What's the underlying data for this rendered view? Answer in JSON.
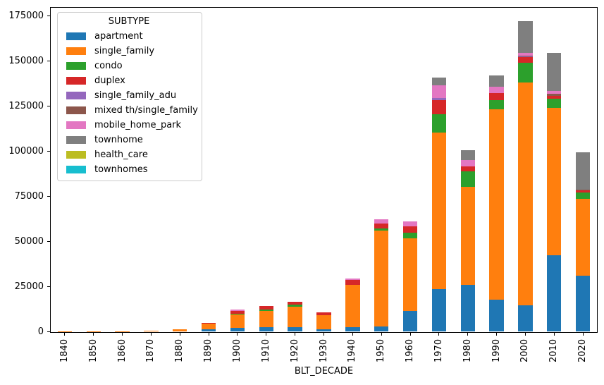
{
  "figure": {
    "xlabel": "BLT_DECADE",
    "legend_title": "SUBTYPE"
  },
  "chart_data": {
    "type": "bar",
    "subtype": "stacked",
    "title": "",
    "xlabel": "BLT_DECADE",
    "ylabel": "",
    "ylim": [
      0,
      180000
    ],
    "yticks": [
      0,
      25000,
      50000,
      75000,
      100000,
      125000,
      150000,
      175000
    ],
    "grid": false,
    "legend_title": "SUBTYPE",
    "legend_position": "upper-left",
    "categories": [
      "1840",
      "1850",
      "1860",
      "1870",
      "1880",
      "1890",
      "1900",
      "1910",
      "1920",
      "1930",
      "1940",
      "1950",
      "1960",
      "1970",
      "1980",
      "1990",
      "2000",
      "2010",
      "2020"
    ],
    "series": [
      {
        "name": "apartment",
        "color": "#1f77b4",
        "values": [
          0,
          0,
          0,
          0,
          0,
          1300,
          2200,
          2500,
          2700,
          1400,
          2700,
          3000,
          11500,
          23700,
          25900,
          17800,
          14800,
          42500,
          31000
        ]
      },
      {
        "name": "single_family",
        "color": "#ff7f0e",
        "values": [
          100,
          100,
          200,
          600,
          1300,
          3100,
          7500,
          9000,
          11300,
          7900,
          23200,
          53200,
          40200,
          86600,
          54500,
          105500,
          123300,
          81700,
          42500
        ]
      },
      {
        "name": "condo",
        "color": "#2ca02c",
        "values": [
          0,
          0,
          0,
          0,
          0,
          0,
          200,
          900,
          900,
          0,
          0,
          1000,
          3200,
          10400,
          8500,
          5200,
          11000,
          5000,
          3700
        ]
      },
      {
        "name": "duplex",
        "color": "#d62728",
        "values": [
          0,
          0,
          0,
          0,
          0,
          300,
          1600,
          1700,
          1800,
          1300,
          3000,
          2900,
          3600,
          7600,
          2600,
          3900,
          3000,
          1600,
          1000
        ]
      },
      {
        "name": "single_family_adu",
        "color": "#9467bd",
        "values": [
          0,
          0,
          0,
          0,
          0,
          0,
          0,
          0,
          0,
          0,
          0,
          0,
          0,
          1200,
          0,
          0,
          500,
          0,
          0
        ]
      },
      {
        "name": "mixed th/single_family",
        "color": "#8c564b",
        "values": [
          0,
          0,
          0,
          0,
          0,
          0,
          0,
          0,
          0,
          0,
          0,
          0,
          0,
          0,
          0,
          0,
          400,
          1300,
          600
        ]
      },
      {
        "name": "mobile_home_park",
        "color": "#e377c2",
        "values": [
          0,
          0,
          0,
          0,
          0,
          0,
          1000,
          0,
          0,
          0,
          600,
          2200,
          2600,
          7200,
          3700,
          3300,
          1700,
          1300,
          0
        ]
      },
      {
        "name": "townhome",
        "color": "#7f7f7f",
        "values": [
          0,
          0,
          0,
          0,
          0,
          0,
          0,
          0,
          0,
          0,
          0,
          0,
          0,
          4300,
          5500,
          6300,
          17300,
          21200,
          20500
        ]
      },
      {
        "name": "health_care",
        "color": "#bcbd22",
        "values": [
          0,
          0,
          0,
          0,
          0,
          0,
          0,
          0,
          0,
          0,
          0,
          0,
          0,
          0,
          0,
          0,
          0,
          0,
          0
        ]
      },
      {
        "name": "townhomes",
        "color": "#17becf",
        "values": [
          0,
          0,
          0,
          0,
          0,
          0,
          0,
          0,
          0,
          0,
          0,
          0,
          0,
          0,
          0,
          0,
          0,
          0,
          0
        ]
      }
    ]
  }
}
